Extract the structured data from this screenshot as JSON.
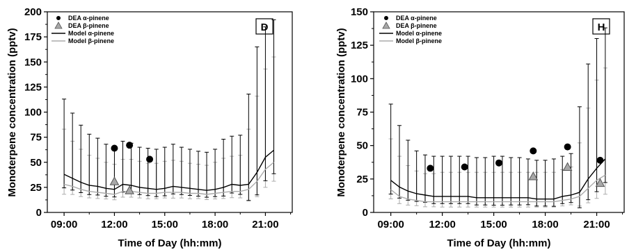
{
  "chart_data": [
    {
      "type": "line",
      "panel_label": "D",
      "xlabel": "Time of Day (hh:mm)",
      "ylabel": "Monoterpene concentration (pptv)",
      "ylim": [
        0,
        200
      ],
      "yticks": [
        0,
        25,
        50,
        75,
        100,
        125,
        150,
        175,
        200
      ],
      "xlim": [
        8.0,
        22.6
      ],
      "xticks": [
        "09:00",
        "12:00",
        "15:00",
        "18:00",
        "21:00"
      ],
      "xtick_values": [
        9,
        12,
        15,
        18,
        21
      ],
      "legend_position": "top-left",
      "series": [
        {
          "name": "DEA α-pinene",
          "kind": "scatter",
          "marker": "circle",
          "color": "#000000",
          "x": [
            12.0,
            12.9,
            14.1
          ],
          "y": [
            64,
            67,
            53
          ]
        },
        {
          "name": "DEA β-pinene",
          "kind": "scatter",
          "marker": "triangle",
          "color": "#999999",
          "x": [
            12.0,
            12.9
          ],
          "y": [
            31,
            22
          ]
        },
        {
          "name": "Model α-pinene",
          "kind": "line",
          "color": "#000000",
          "x": [
            9.0,
            9.5,
            10.0,
            10.5,
            11.0,
            11.5,
            12.0,
            12.5,
            13.0,
            13.5,
            14.0,
            14.5,
            15.0,
            15.5,
            16.0,
            16.5,
            17.0,
            17.5,
            18.0,
            18.5,
            19.0,
            19.5,
            20.0,
            20.5,
            21.0,
            21.5
          ],
          "y": [
            38,
            34,
            30,
            27,
            26,
            24,
            23,
            28,
            27,
            25,
            24,
            23,
            24,
            26,
            25,
            24,
            23,
            22,
            23,
            25,
            28,
            27,
            28,
            40,
            55,
            62
          ],
          "err": [
            75,
            65,
            57,
            51,
            48,
            44,
            42,
            43,
            42,
            40,
            40,
            40,
            41,
            42,
            40,
            39,
            38,
            38,
            40,
            48,
            48,
            50,
            90,
            125,
            130,
            130
          ]
        },
        {
          "name": "Model β-pinene",
          "kind": "line",
          "color": "#aaaaaa",
          "x": [
            9.0,
            9.5,
            10.0,
            10.5,
            11.0,
            11.5,
            12.0,
            12.5,
            13.0,
            13.5,
            14.0,
            14.5,
            15.0,
            15.5,
            16.0,
            16.5,
            17.0,
            17.5,
            18.0,
            18.5,
            19.0,
            19.5,
            20.0,
            20.5,
            21.0,
            21.5
          ],
          "y": [
            28,
            26,
            23,
            21,
            20,
            19,
            18,
            21,
            21,
            20,
            19,
            19,
            20,
            20,
            20,
            19,
            19,
            18,
            19,
            20,
            21,
            21,
            23,
            31,
            43,
            50
          ],
          "err": [
            55,
            45,
            40,
            36,
            34,
            31,
            30,
            32,
            32,
            31,
            30,
            30,
            31,
            32,
            31,
            30,
            29,
            29,
            31,
            34,
            35,
            36,
            60,
            85,
            100,
            105
          ]
        }
      ]
    },
    {
      "type": "line",
      "panel_label": "H",
      "xlabel": "Time of Day (hh:mm)",
      "ylabel": "Monoterpene concentration (pptv)",
      "ylim": [
        0,
        150
      ],
      "yticks": [
        0,
        25,
        50,
        75,
        100,
        125,
        150
      ],
      "xlim": [
        8.0,
        22.6
      ],
      "xticks": [
        "09:00",
        "12:00",
        "15:00",
        "18:00",
        "21:00"
      ],
      "xtick_values": [
        9,
        12,
        15,
        18,
        21
      ],
      "legend_position": "top-left",
      "series": [
        {
          "name": "DEA α-pinene",
          "kind": "scatter",
          "marker": "circle",
          "color": "#000000",
          "x": [
            11.3,
            13.3,
            15.3,
            17.3,
            19.3,
            21.2
          ],
          "y": [
            33,
            34,
            37,
            46,
            49,
            39
          ]
        },
        {
          "name": "DEA β-pinene",
          "kind": "scatter",
          "marker": "triangle",
          "color": "#999999",
          "x": [
            17.3,
            19.3,
            21.2
          ],
          "y": [
            27,
            34,
            22
          ]
        },
        {
          "name": "Model α-pinene",
          "kind": "line",
          "color": "#000000",
          "x": [
            9.0,
            9.5,
            10.0,
            10.5,
            11.0,
            11.5,
            12.0,
            12.5,
            13.0,
            13.5,
            14.0,
            14.5,
            15.0,
            15.5,
            16.0,
            16.5,
            17.0,
            17.5,
            18.0,
            18.5,
            19.0,
            19.5,
            20.0,
            20.5,
            21.0,
            21.5
          ],
          "y": [
            24,
            19,
            16,
            14,
            13,
            12,
            12,
            12,
            12,
            12,
            11,
            11,
            11,
            11,
            11,
            11,
            11,
            10,
            10,
            10,
            12,
            13,
            15,
            25,
            33,
            40
          ],
          "err": [
            57,
            46,
            38,
            32,
            30,
            30,
            30,
            30,
            30,
            30,
            30,
            30,
            31,
            31,
            30,
            30,
            29,
            29,
            29,
            30,
            30,
            31,
            64,
            86,
            97,
            98
          ]
        },
        {
          "name": "Model β-pinene",
          "kind": "line",
          "color": "#aaaaaa",
          "x": [
            9.0,
            9.5,
            10.0,
            10.5,
            11.0,
            11.5,
            12.0,
            12.5,
            13.0,
            13.5,
            14.0,
            14.5,
            15.0,
            15.5,
            16.0,
            16.5,
            17.0,
            17.5,
            18.0,
            18.5,
            19.0,
            19.5,
            20.0,
            20.5,
            21.0,
            21.5
          ],
          "y": [
            17,
            12,
            10,
            9,
            8,
            8,
            8,
            8,
            8,
            8,
            8,
            8,
            8,
            8,
            8,
            8,
            8,
            8,
            8,
            8,
            9,
            10,
            12,
            18,
            24,
            28
          ],
          "err": [
            38,
            30,
            25,
            22,
            21,
            21,
            22,
            22,
            22,
            22,
            22,
            22,
            22,
            22,
            22,
            22,
            22,
            22,
            22,
            22,
            23,
            24,
            40,
            60,
            75,
            80
          ]
        }
      ]
    }
  ]
}
